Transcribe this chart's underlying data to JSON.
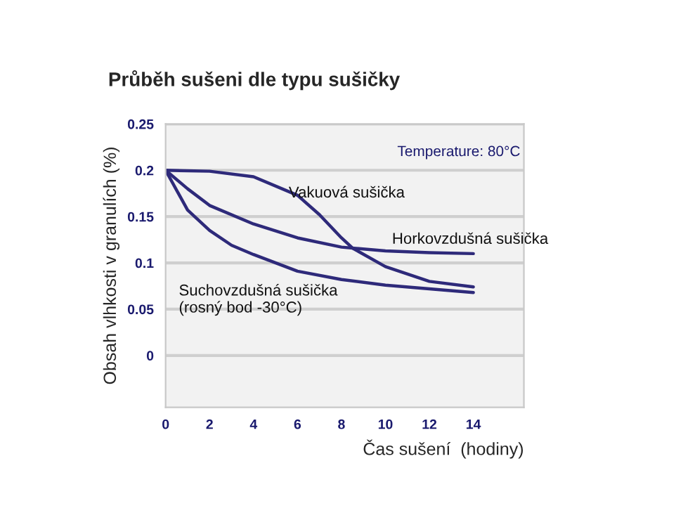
{
  "chart_data": {
    "type": "line",
    "title": "Průběh sušeni dle typu sušičky",
    "xlabel": "Čas sušení  (hodiny)",
    "ylabel": "Obsah vlhkosti v granulích (%)",
    "annotations": [
      "Temperature: 80°C"
    ],
    "xlim": [
      0,
      16.3
    ],
    "xticks": [
      0,
      2,
      4,
      6,
      8,
      10,
      12,
      14
    ],
    "ylim": [
      -0.056,
      0.25
    ],
    "yticks": [
      0,
      0.05,
      0.1,
      0.15,
      0.2,
      0.25
    ],
    "grid": "y",
    "legend": false,
    "marker": "none",
    "line_style": "solid",
    "series": [
      {
        "name": "Vakuová sušička",
        "color": "#2e2a7a",
        "x": [
          0,
          2,
          4,
          6,
          7,
          8,
          8.5,
          10,
          12,
          14
        ],
        "values": [
          0.2,
          0.199,
          0.193,
          0.173,
          0.152,
          0.127,
          0.116,
          0.096,
          0.08,
          0.074
        ]
      },
      {
        "name": "Horkovzdušná sušička",
        "color": "#2e2a7a",
        "x": [
          0,
          1,
          2,
          4,
          6,
          8,
          10,
          12,
          14
        ],
        "values": [
          0.2,
          0.18,
          0.162,
          0.142,
          0.127,
          0.117,
          0.113,
          0.111,
          0.11
        ]
      },
      {
        "name": "Suchovzdušná sušička\n(rosný bod -30°C)",
        "color": "#2e2a7a",
        "x": [
          0,
          1,
          2,
          3,
          4,
          6,
          8,
          10,
          12,
          14
        ],
        "values": [
          0.2,
          0.157,
          0.135,
          0.119,
          0.109,
          0.091,
          0.082,
          0.076,
          0.072,
          0.068
        ]
      }
    ]
  }
}
